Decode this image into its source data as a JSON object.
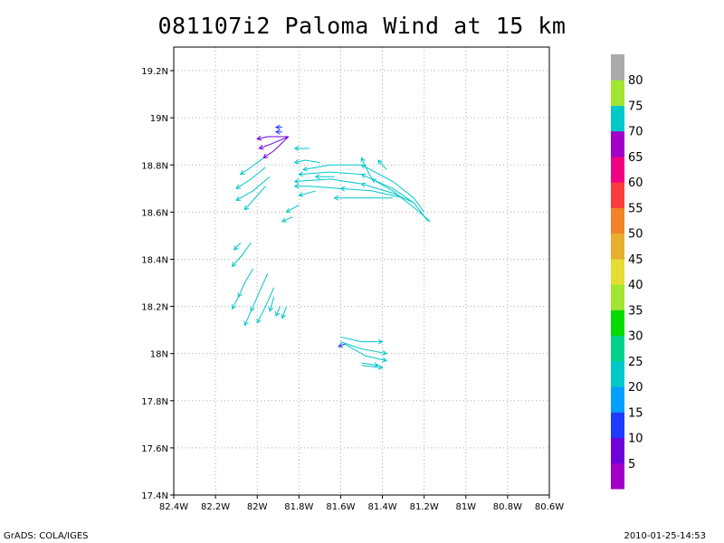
{
  "title": "081107i2 Paloma Wind at 15 km",
  "footer": {
    "left": "GrADS: COLA/IGES",
    "right": "2010-01-25-14:53"
  },
  "chart_data": {
    "type": "vector-field",
    "title": "081107i2 Paloma Wind at 15 km",
    "xlim": [
      -82.4,
      -80.6
    ],
    "ylim": [
      17.4,
      19.3
    ],
    "grid": true,
    "x_ticks": [
      {
        "value": -82.4,
        "label": "82.4W"
      },
      {
        "value": -82.2,
        "label": "82.2W"
      },
      {
        "value": -82.0,
        "label": "82W"
      },
      {
        "value": -81.8,
        "label": "81.8W"
      },
      {
        "value": -81.6,
        "label": "81.6W"
      },
      {
        "value": -81.4,
        "label": "81.4W"
      },
      {
        "value": -81.2,
        "label": "81.2W"
      },
      {
        "value": -81.0,
        "label": "81W"
      },
      {
        "value": -80.8,
        "label": "80.8W"
      },
      {
        "value": -80.6,
        "label": "80.6W"
      }
    ],
    "y_ticks": [
      {
        "value": 17.4,
        "label": "17.4N"
      },
      {
        "value": 17.6,
        "label": "17.6N"
      },
      {
        "value": 17.8,
        "label": "17.8N"
      },
      {
        "value": 18.0,
        "label": "18N"
      },
      {
        "value": 18.2,
        "label": "18.2N"
      },
      {
        "value": 18.4,
        "label": "18.4N"
      },
      {
        "value": 18.6,
        "label": "18.6N"
      },
      {
        "value": 18.8,
        "label": "18.8N"
      },
      {
        "value": 19.0,
        "label": "19N"
      },
      {
        "value": 19.2,
        "label": "19.2N"
      }
    ],
    "colorbar": {
      "labels": [
        "5",
        "10",
        "15",
        "20",
        "25",
        "30",
        "35",
        "40",
        "45",
        "50",
        "55",
        "60",
        "65",
        "70",
        "75",
        "80"
      ],
      "colors": [
        "#a000c8",
        "#6e00dc",
        "#1e3cff",
        "#00a0ff",
        "#00c8c8",
        "#00d28c",
        "#00dc00",
        "#a0e632",
        "#e6dc32",
        "#e6af2d",
        "#f08228",
        "#fa3c3c",
        "#f00082",
        "#a000c8",
        "#00c8c8",
        "#a0e632",
        "#aaaaaa"
      ]
    },
    "streamlines": [
      {
        "color": "#6e00dc",
        "points": [
          [
            -81.85,
            18.92
          ],
          [
            -81.95,
            18.92
          ],
          [
            -82.0,
            18.91
          ]
        ]
      },
      {
        "color": "#6e00dc",
        "points": [
          [
            -81.85,
            18.92
          ],
          [
            -81.93,
            18.89
          ],
          [
            -81.99,
            18.87
          ]
        ]
      },
      {
        "color": "#6e00dc",
        "points": [
          [
            -81.85,
            18.92
          ],
          [
            -81.92,
            18.86
          ],
          [
            -81.97,
            18.83
          ]
        ]
      },
      {
        "color": "#1e3cff",
        "points": [
          [
            -81.88,
            18.96
          ],
          [
            -81.91,
            18.96
          ]
        ]
      },
      {
        "color": "#1e3cff",
        "points": [
          [
            -81.88,
            18.94
          ],
          [
            -81.91,
            18.94
          ]
        ]
      },
      {
        "color": "#00c8c8",
        "points": [
          [
            -81.97,
            18.83
          ],
          [
            -82.03,
            18.79
          ],
          [
            -82.08,
            18.76
          ]
        ]
      },
      {
        "color": "#00c8c8",
        "points": [
          [
            -81.96,
            18.79
          ],
          [
            -82.03,
            18.74
          ],
          [
            -82.1,
            18.7
          ]
        ]
      },
      {
        "color": "#00c8c8",
        "points": [
          [
            -81.94,
            18.75
          ],
          [
            -82.02,
            18.69
          ],
          [
            -82.1,
            18.65
          ]
        ]
      },
      {
        "color": "#00c8c8",
        "points": [
          [
            -81.96,
            18.71
          ],
          [
            -82.01,
            18.66
          ],
          [
            -82.06,
            18.61
          ]
        ]
      },
      {
        "color": "#00c8c8",
        "points": [
          [
            -81.75,
            18.87
          ],
          [
            -81.82,
            18.87
          ]
        ]
      },
      {
        "color": "#00c8c8",
        "points": [
          [
            -81.7,
            18.81
          ],
          [
            -81.77,
            18.82
          ],
          [
            -81.82,
            18.81
          ]
        ]
      },
      {
        "color": "#00c8c8",
        "points": [
          [
            -81.2,
            18.6
          ],
          [
            -81.25,
            18.66
          ],
          [
            -81.35,
            18.73
          ],
          [
            -81.5,
            18.8
          ],
          [
            -81.65,
            18.8
          ],
          [
            -81.78,
            18.78
          ]
        ]
      },
      {
        "color": "#00c8c8",
        "points": [
          [
            -81.18,
            18.56
          ],
          [
            -81.25,
            18.64
          ],
          [
            -81.35,
            18.7
          ],
          [
            -81.5,
            18.76
          ],
          [
            -81.65,
            18.77
          ],
          [
            -81.8,
            18.76
          ]
        ]
      },
      {
        "color": "#00c8c8",
        "points": [
          [
            -81.25,
            18.64
          ],
          [
            -81.35,
            18.68
          ],
          [
            -81.5,
            18.72
          ],
          [
            -81.65,
            18.74
          ],
          [
            -81.82,
            18.73
          ]
        ]
      },
      {
        "color": "#00c8c8",
        "points": [
          [
            -81.3,
            18.66
          ],
          [
            -81.45,
            18.69
          ],
          [
            -81.6,
            18.7
          ],
          [
            -81.75,
            18.71
          ],
          [
            -81.82,
            18.71
          ]
        ]
      },
      {
        "color": "#00c8c8",
        "points": [
          [
            -81.35,
            18.66
          ],
          [
            -81.5,
            18.66
          ],
          [
            -81.63,
            18.66
          ]
        ]
      },
      {
        "color": "#00c8c8",
        "points": [
          [
            -81.17,
            18.56
          ],
          [
            -81.25,
            18.62
          ],
          [
            -81.35,
            18.69
          ],
          [
            -81.45,
            18.74
          ],
          [
            -81.48,
            18.79
          ],
          [
            -81.5,
            18.83
          ]
        ]
      },
      {
        "color": "#00c8c8",
        "points": [
          [
            -81.72,
            18.69
          ],
          [
            -81.8,
            18.67
          ]
        ]
      },
      {
        "color": "#00c8c8",
        "points": [
          [
            -81.8,
            18.63
          ],
          [
            -81.86,
            18.6
          ]
        ]
      },
      {
        "color": "#00c8c8",
        "points": [
          [
            -81.83,
            18.58
          ],
          [
            -81.88,
            18.56
          ]
        ]
      },
      {
        "color": "#00c8c8",
        "points": [
          [
            -81.63,
            18.75
          ],
          [
            -81.72,
            18.75
          ]
        ]
      },
      {
        "color": "#00c8c8",
        "points": [
          [
            -81.38,
            18.78
          ],
          [
            -81.42,
            18.82
          ]
        ]
      },
      {
        "color": "#00c8c8",
        "points": [
          [
            -82.03,
            18.47
          ],
          [
            -82.07,
            18.42
          ],
          [
            -82.12,
            18.37
          ]
        ]
      },
      {
        "color": "#00c8c8",
        "points": [
          [
            -82.02,
            18.36
          ],
          [
            -82.06,
            18.3
          ],
          [
            -82.09,
            18.24
          ],
          [
            -82.12,
            18.19
          ]
        ]
      },
      {
        "color": "#00c8c8",
        "points": [
          [
            -81.95,
            18.34
          ],
          [
            -81.99,
            18.26
          ],
          [
            -82.03,
            18.18
          ],
          [
            -82.06,
            18.12
          ]
        ]
      },
      {
        "color": "#00c8c8",
        "points": [
          [
            -81.92,
            18.28
          ],
          [
            -81.96,
            18.2
          ],
          [
            -82.0,
            18.13
          ]
        ]
      },
      {
        "color": "#00c8c8",
        "points": [
          [
            -81.92,
            18.24
          ],
          [
            -81.94,
            18.18
          ]
        ]
      },
      {
        "color": "#00c8c8",
        "points": [
          [
            -81.89,
            18.2
          ],
          [
            -81.91,
            18.16
          ]
        ]
      },
      {
        "color": "#00c8c8",
        "points": [
          [
            -81.86,
            18.2
          ],
          [
            -81.88,
            18.15
          ]
        ]
      },
      {
        "color": "#00c8c8",
        "points": [
          [
            -82.08,
            18.47
          ],
          [
            -82.11,
            18.44
          ]
        ]
      },
      {
        "color": "#00c8c8",
        "points": [
          [
            -81.6,
            18.07
          ],
          [
            -81.5,
            18.05
          ],
          [
            -81.4,
            18.05
          ]
        ]
      },
      {
        "color": "#00c8c8",
        "points": [
          [
            -81.6,
            18.05
          ],
          [
            -81.5,
            18.02
          ],
          [
            -81.38,
            18.0
          ]
        ]
      },
      {
        "color": "#00c8c8",
        "points": [
          [
            -81.58,
            18.04
          ],
          [
            -81.48,
            17.99
          ],
          [
            -81.38,
            17.97
          ]
        ]
      },
      {
        "color": "#00c8c8",
        "points": [
          [
            -81.5,
            17.95
          ],
          [
            -81.4,
            17.94
          ]
        ]
      },
      {
        "color": "#00c8c8",
        "points": [
          [
            -81.5,
            17.96
          ],
          [
            -81.42,
            17.95
          ]
        ]
      },
      {
        "color": "#1e3cff",
        "points": [
          [
            -81.58,
            18.04
          ],
          [
            -81.61,
            18.03
          ]
        ]
      }
    ]
  }
}
